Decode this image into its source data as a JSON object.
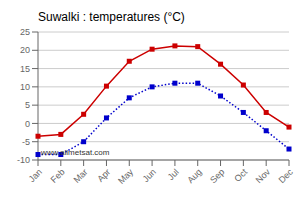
{
  "chart_data": {
    "type": "line",
    "title": "Suwalki : temperatures (°C)",
    "categories": [
      "Jan",
      "Feb",
      "Mar",
      "Apr",
      "May",
      "Jun",
      "Jul",
      "Aug",
      "Sep",
      "Oct",
      "Nov",
      "Dec"
    ],
    "series": [
      {
        "color": "#cc0000",
        "line_style": "solid",
        "marker": "square",
        "values": [
          -3.5,
          -3,
          2.5,
          10.2,
          17,
          20.3,
          21.2,
          21,
          16.2,
          10.5,
          3,
          -1
        ]
      },
      {
        "color": "#0000cc",
        "line_style": "dotted",
        "marker": "square",
        "values": [
          -8.5,
          -8.5,
          -5,
          1.5,
          7,
          10,
          11,
          11,
          7.5,
          3,
          -2,
          -7
        ]
      }
    ],
    "ylim": [
      -10,
      25
    ],
    "yticks": [
      -10,
      -5,
      0,
      5,
      10,
      15,
      20,
      25
    ],
    "grid": true,
    "annotation": "www.allmetsat.com"
  }
}
